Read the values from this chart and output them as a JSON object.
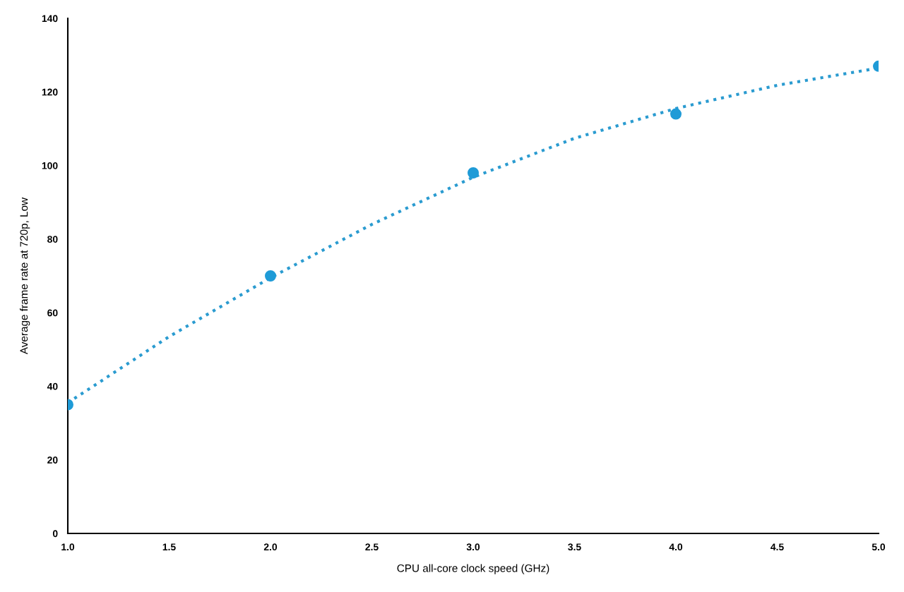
{
  "chart_data": {
    "type": "scatter",
    "xlabel": "CPU all-core clock speed (GHz)",
    "ylabel": "Average frame rate at 720p, Low",
    "xlim": [
      1.0,
      5.0
    ],
    "ylim": [
      0,
      140
    ],
    "xticks": [
      {
        "value": 1.0,
        "label": "1.0"
      },
      {
        "value": 1.5,
        "label": "1.5"
      },
      {
        "value": 2.0,
        "label": "2.0"
      },
      {
        "value": 2.5,
        "label": "2.5"
      },
      {
        "value": 3.0,
        "label": "3.0"
      },
      {
        "value": 3.5,
        "label": "3.5"
      },
      {
        "value": 4.0,
        "label": "4.0"
      },
      {
        "value": 4.5,
        "label": "4.5"
      },
      {
        "value": 5.0,
        "label": "5.0"
      }
    ],
    "yticks": [
      0,
      20,
      40,
      60,
      80,
      100,
      120,
      140
    ],
    "grid": false,
    "legend": false,
    "marker": "circle",
    "series": [
      {
        "color": "#1f9bd7",
        "x": [
          1.0,
          2.0,
          3.0,
          4.0,
          5.0
        ],
        "values": [
          35,
          70,
          98,
          114,
          127
        ]
      },
      {
        "type": "line",
        "color": "#2a9bd0",
        "line_style": "dotted",
        "marker": "none",
        "x": [
          1.0,
          1.5,
          2.0,
          2.5,
          3.0,
          3.5,
          4.0,
          4.5,
          5.0
        ],
        "values": [
          35.5,
          53.5,
          69.5,
          84,
          96.8,
          107.4,
          115.5,
          121.8,
          126.5
        ]
      }
    ]
  }
}
